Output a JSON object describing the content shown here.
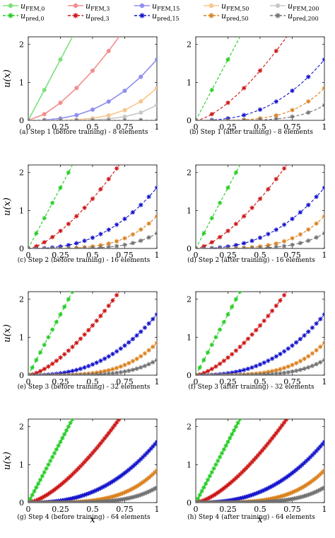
{
  "legend": {
    "entries": [
      {
        "label": "u",
        "sub": "FEM,0",
        "color": "#7CE07C",
        "style": "solid",
        "marker": "circle"
      },
      {
        "label": "u",
        "sub": "FEM,3",
        "color": "#F28E8E",
        "style": "solid",
        "marker": "circle"
      },
      {
        "label": "u",
        "sub": "FEM,15",
        "color": "#8E8EF2",
        "style": "solid",
        "marker": "circle"
      },
      {
        "label": "u",
        "sub": "FEM,50",
        "color": "#F7C58E",
        "style": "solid",
        "marker": "circle"
      },
      {
        "label": "u",
        "sub": "FEM,200",
        "color": "#C8C8C8",
        "style": "solid",
        "marker": "circle"
      },
      {
        "label": "u",
        "sub": "pred,0",
        "color": "#22CC22",
        "style": "dashed",
        "marker": "star"
      },
      {
        "label": "u",
        "sub": "pred,3",
        "color": "#CC1111",
        "style": "dashed",
        "marker": "star"
      },
      {
        "label": "u",
        "sub": "pred,15",
        "color": "#1111CC",
        "style": "dashed",
        "marker": "star"
      },
      {
        "label": "u",
        "sub": "pred,50",
        "color": "#D97F1A",
        "style": "dashed",
        "marker": "star"
      },
      {
        "label": "u",
        "sub": "pred,200",
        "color": "#707070",
        "style": "dashed",
        "marker": "star"
      }
    ]
  },
  "axes": {
    "ylabel": "u(x)",
    "xlabel": "x",
    "xticks": [
      "0",
      "0.25",
      "0.5",
      "0.75",
      "1"
    ],
    "yticks": [
      "0",
      "1",
      "2"
    ]
  },
  "chart_data": {
    "type": "line",
    "xlim": [
      0,
      1
    ],
    "ylim": [
      0,
      2.2
    ],
    "function_params": {
      "fem_scale": [
        6.4,
        3.7,
        1.6,
        0.85,
        0.4
      ],
      "fem_exponent": [
        1,
        1.5,
        2.5,
        4,
        5
      ]
    },
    "panels": [
      {
        "caption": "(a) Step 1 (before training) - 8 elements",
        "elements": 8,
        "show_fem": true,
        "show_pred": false,
        "pred_offset": true
      },
      {
        "caption": "(b) Step 1 (after training) - 8 elements",
        "elements": 8,
        "show_fem": false,
        "show_pred": true
      },
      {
        "caption": "(c) Step 2 (before training) - 16 elements",
        "elements": 16,
        "show_fem": false,
        "show_pred": true
      },
      {
        "caption": "(d) Step 2 (after training) - 16 elements",
        "elements": 16,
        "show_fem": false,
        "show_pred": true
      },
      {
        "caption": "(e) Step 3 (before training) - 32 elements",
        "elements": 32,
        "show_fem": false,
        "show_pred": true
      },
      {
        "caption": "(f) Step 3 (after training) - 32 elements",
        "elements": 32,
        "show_fem": false,
        "show_pred": true
      },
      {
        "caption": "(g) Step 4 (before training) - 64 elements",
        "elements": 64,
        "show_fem": false,
        "show_pred": true
      },
      {
        "caption": "(h) Step 4 (after training) - 64 elements",
        "elements": 64,
        "show_fem": false,
        "show_pred": true
      }
    ]
  }
}
